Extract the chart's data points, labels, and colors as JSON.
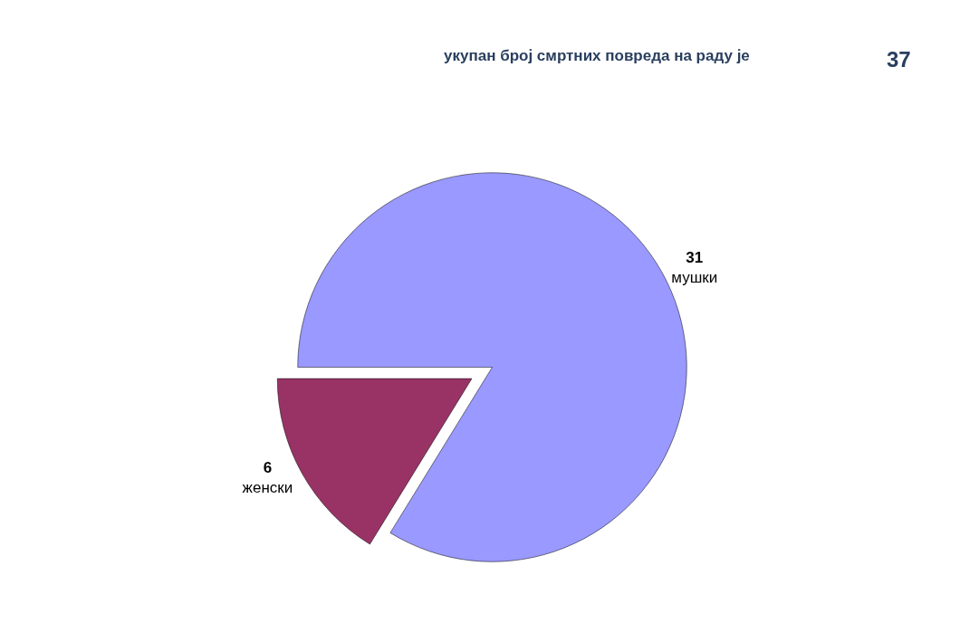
{
  "chart_data": {
    "type": "pie",
    "title": "укупан број смртних повреда на раду је",
    "annotations": [
      "37"
    ],
    "categories": [
      "мушки",
      "женски"
    ],
    "values": [
      31,
      6
    ],
    "colors": [
      "#9999ff",
      "#993366"
    ],
    "data_labels": true,
    "legend": false
  }
}
